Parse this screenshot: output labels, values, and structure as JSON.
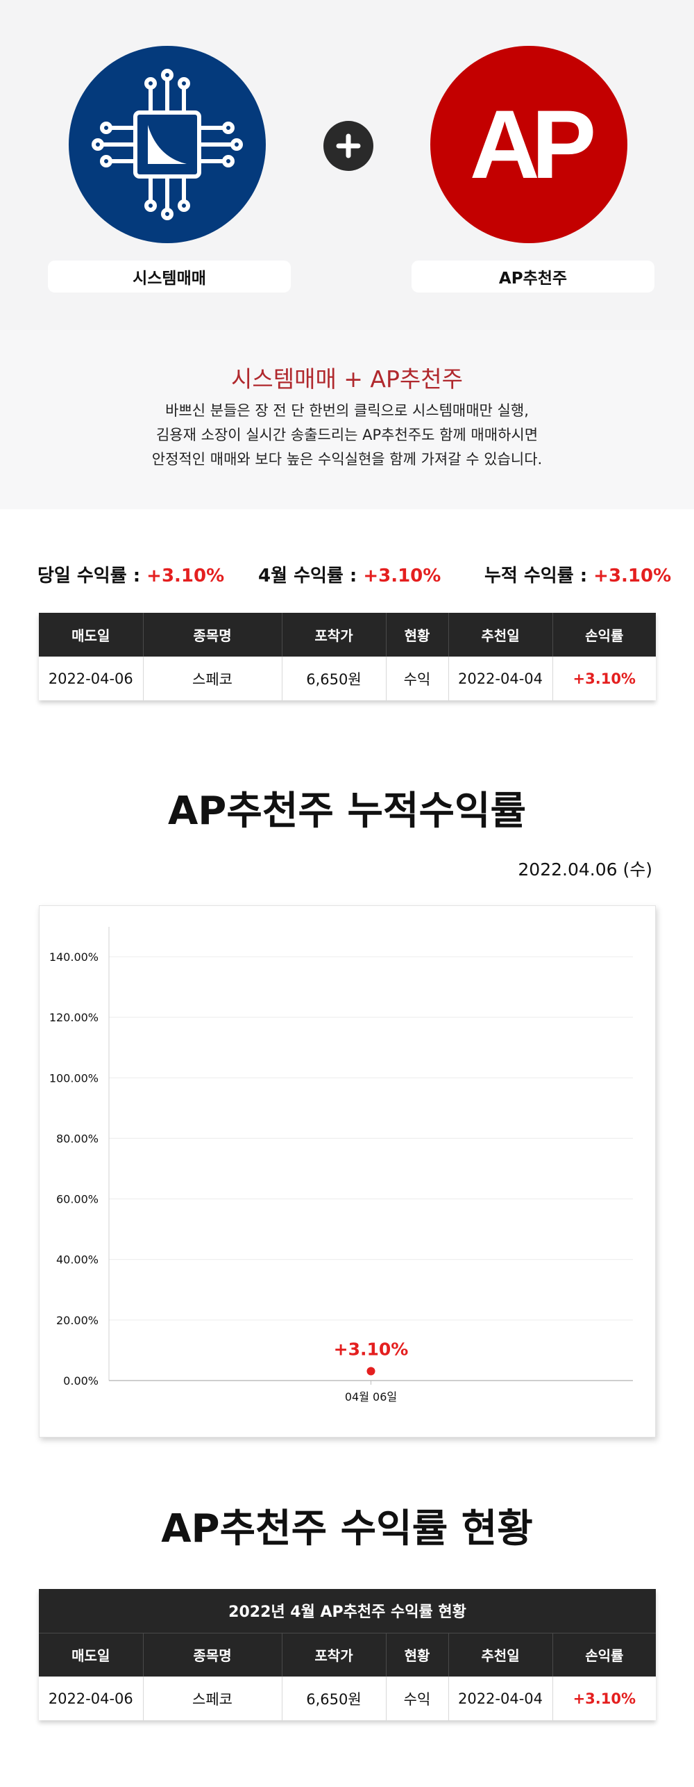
{
  "hero": {
    "left_logo_icon": "circuit-chip-icon",
    "left_label": "시스템매매",
    "plus_icon": "plus-icon",
    "right_logo_text": "AP",
    "right_label": "AP추천주",
    "colors": {
      "left_logo": "#043a7c",
      "right_logo": "#c30000",
      "plus": "#2a2a2a"
    }
  },
  "intro": {
    "title": "시스템매매 + AP추천주",
    "lines": [
      "바쁘신 분들은 장 전 단 한번의 클릭으로 시스템매매만 실행,",
      "김용재 소장이 실시간 송출드리는 AP추천주도 함께 매매하시면",
      "안정적인 매매와 보다 높은 수익실현을 함께 가져갈 수 있습니다."
    ]
  },
  "summary": [
    {
      "label": "당일 수익률 : ",
      "value": "+3.10%"
    },
    {
      "label": "4월 수익률 : ",
      "value": "+3.10%"
    },
    {
      "label": "누적 수익률 : ",
      "value": "+3.10%"
    }
  ],
  "table_headers": [
    "매도일",
    "종목명",
    "포착가",
    "현황",
    "추천일",
    "손익률"
  ],
  "top_table": {
    "rows": [
      [
        "2022-04-06",
        "스페코",
        "6,650원",
        "수익",
        "2022-04-04",
        "+3.10%"
      ]
    ]
  },
  "cumulative_section": {
    "title": "AP추천주 누적수익률",
    "date": "2022.04.06 (수)"
  },
  "chart_data": {
    "type": "scatter",
    "categories": [
      "04월 06일"
    ],
    "series": [
      {
        "values": [
          3.1
        ],
        "labels": [
          "+3.10%"
        ]
      }
    ],
    "ylim": [
      0,
      140
    ],
    "yticks": [
      0,
      20,
      40,
      60,
      80,
      100,
      120,
      140
    ],
    "ytick_labels": [
      "0.00%",
      "20.00%",
      "40.00%",
      "60.00%",
      "80.00%",
      "100.00%",
      "120.00%",
      "140.00%"
    ],
    "grid": true,
    "title": "",
    "xlabel": "",
    "ylabel": "",
    "point_color": "#e41f1f"
  },
  "status_section": {
    "title": "AP추천주 수익률 현황",
    "table_caption": "2022년 4월 AP추천주 수익률 현황",
    "rows": [
      [
        "2022-04-06",
        "스페코",
        "6,650원",
        "수익",
        "2022-04-04",
        "+3.10%"
      ]
    ]
  }
}
